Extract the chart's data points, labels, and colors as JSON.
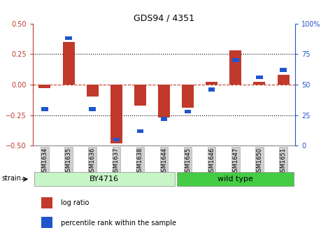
{
  "title": "GDS94 / 4351",
  "samples": [
    "GSM1634",
    "GSM1635",
    "GSM1636",
    "GSM1637",
    "GSM1638",
    "GSM1644",
    "GSM1645",
    "GSM1646",
    "GSM1647",
    "GSM1650",
    "GSM1651"
  ],
  "log_ratio": [
    -0.03,
    0.35,
    -0.1,
    -0.48,
    -0.17,
    -0.27,
    -0.19,
    0.02,
    0.28,
    0.02,
    0.08
  ],
  "percentile": [
    30,
    88,
    30,
    5,
    12,
    22,
    28,
    46,
    70,
    56,
    62
  ],
  "by4716_indices": [
    0,
    1,
    2,
    3,
    4,
    5
  ],
  "wildtype_indices": [
    6,
    7,
    8,
    9,
    10
  ],
  "ylim_left": [
    -0.5,
    0.5
  ],
  "ylim_right": [
    0,
    100
  ],
  "bar_color_red": "#c0392b",
  "bar_color_blue": "#2255cc",
  "zero_line_color": "#c0392b",
  "dot_line_color": "black",
  "background_color": "#ffffff",
  "title_color": "black",
  "left_tick_color": "#c0392b",
  "right_tick_color": "#2255cc",
  "bar_width": 0.5,
  "by4716_color_light": "#c8f5c8",
  "by4716_color": "#c8f5c8",
  "wildtype_color": "#44cc44",
  "tick_box_color": "#d0d0d0"
}
